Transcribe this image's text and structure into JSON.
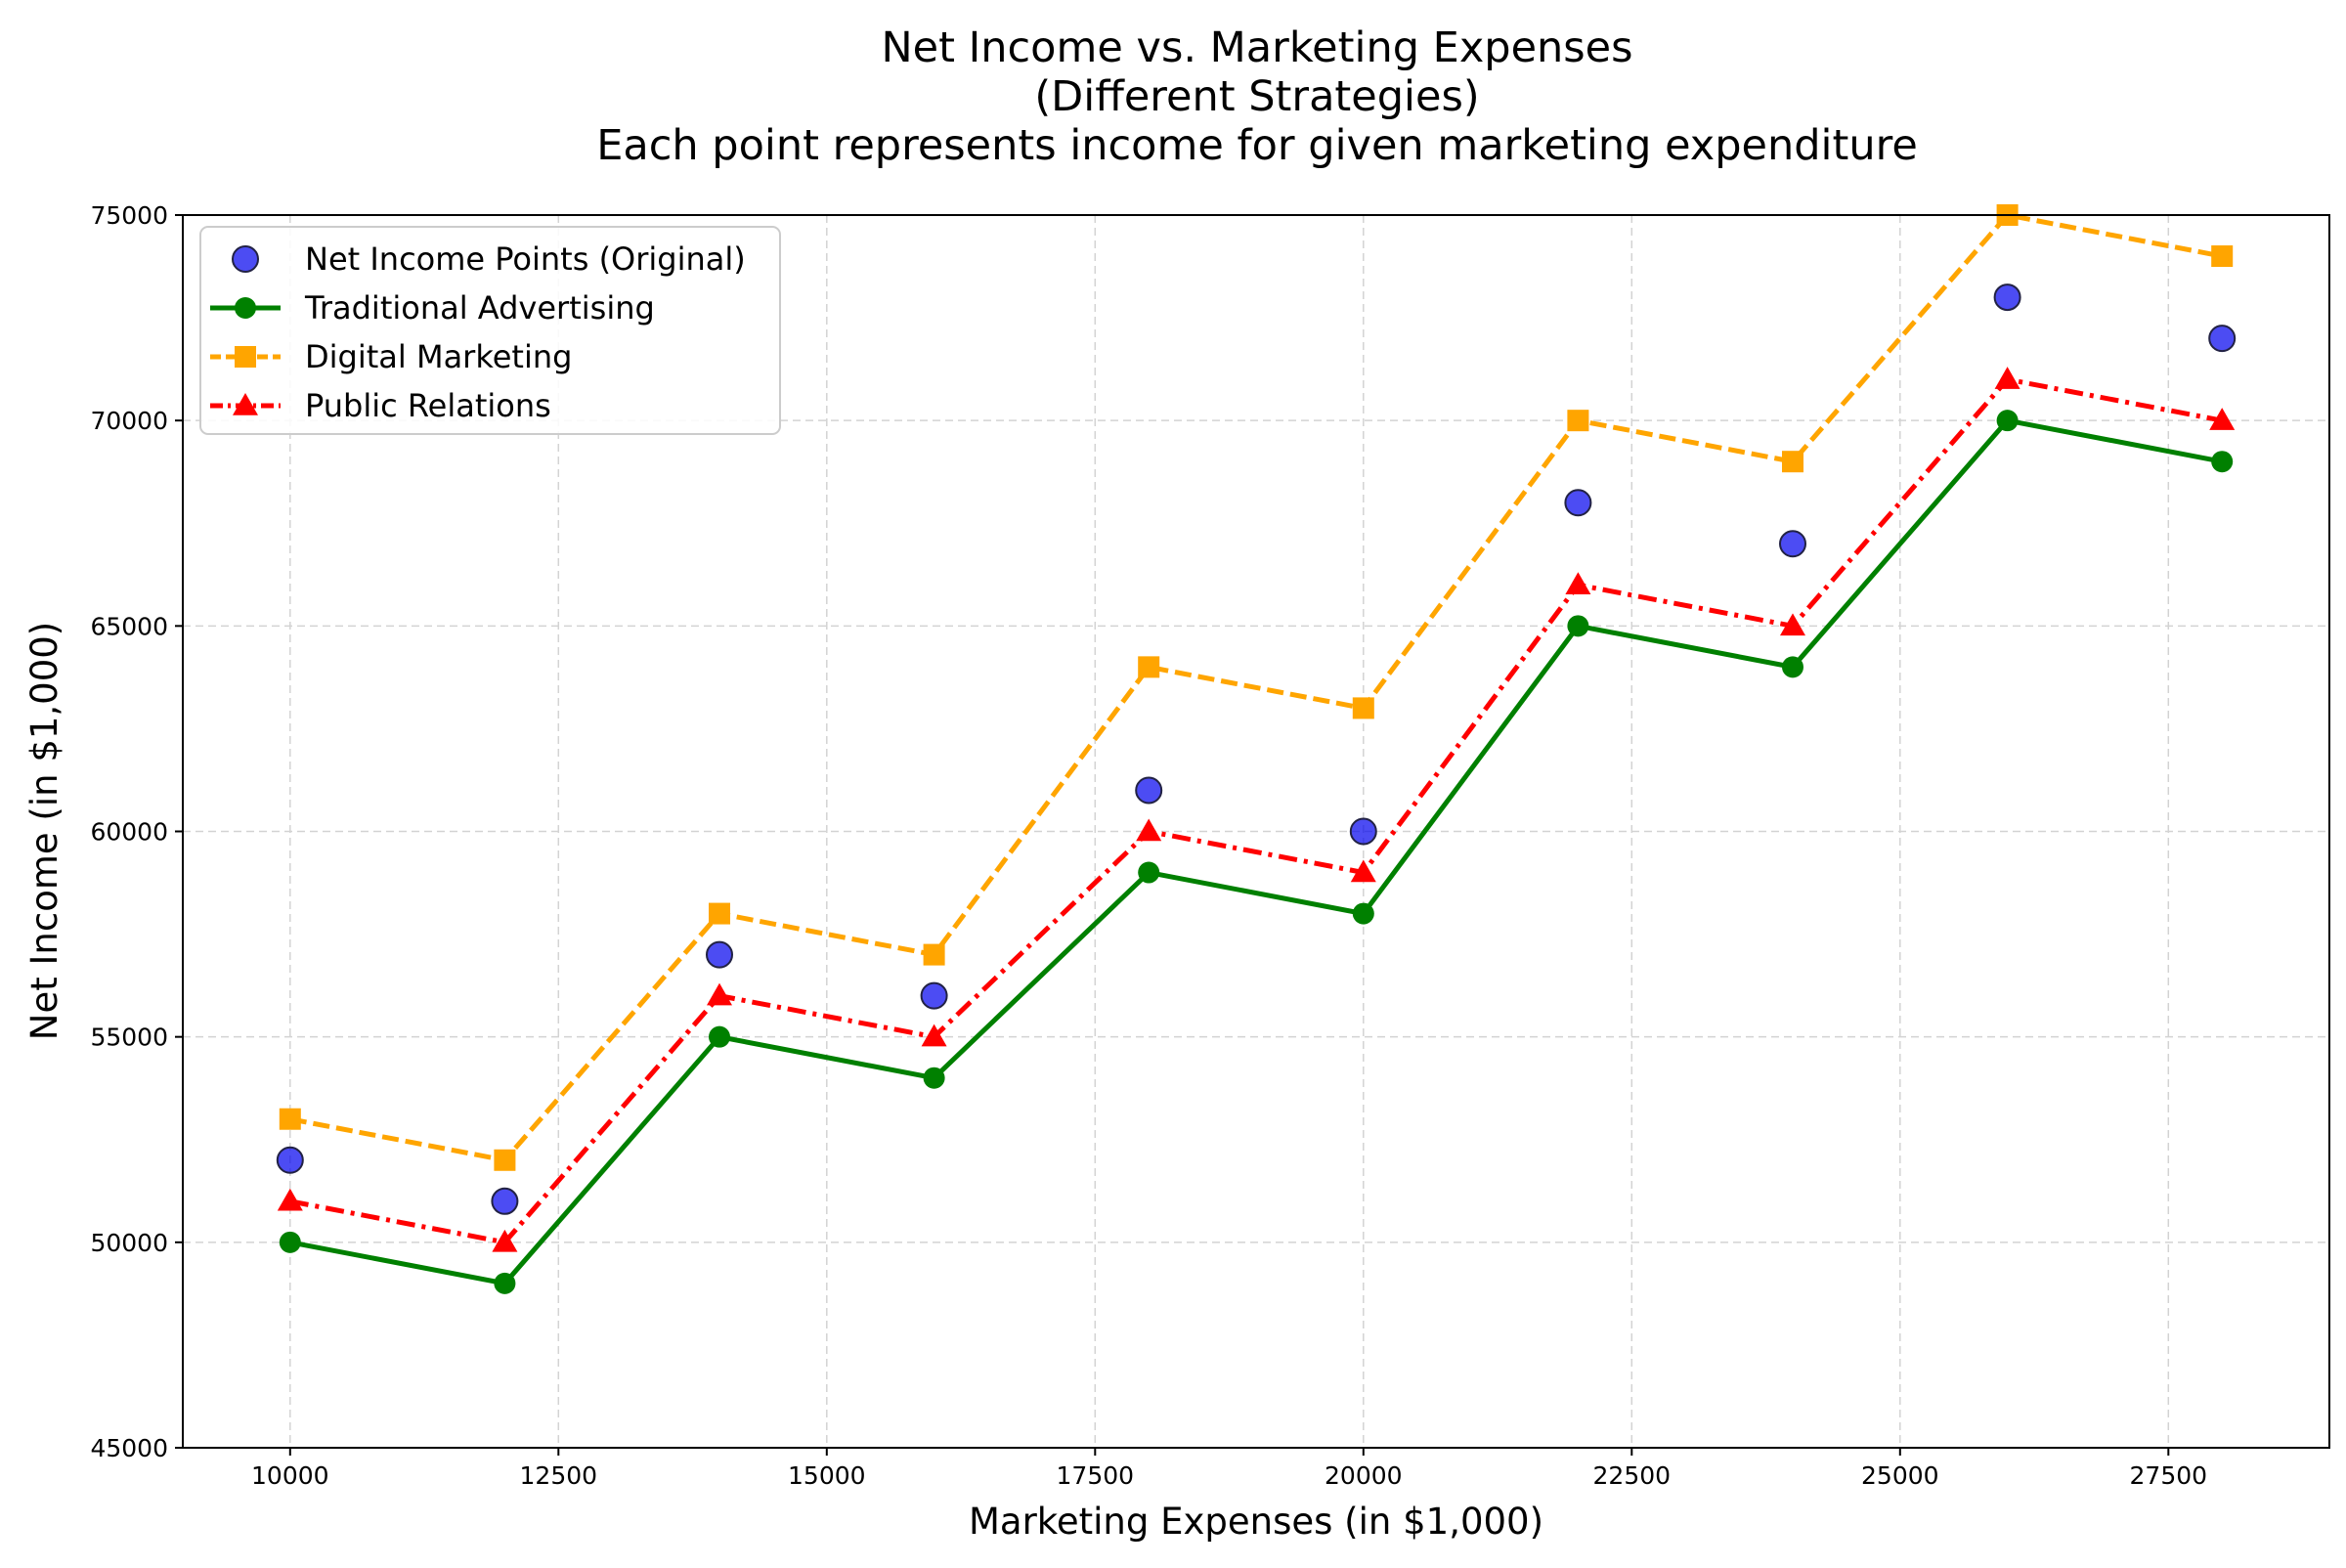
{
  "chart_data": {
    "type": "line",
    "title_lines": [
      "Net Income vs. Marketing Expenses",
      "(Different Strategies)",
      "Each point represents income for given marketing expenditure"
    ],
    "xlabel": "Marketing Expenses (in $1,000)",
    "ylabel": "Net Income (in $1,000)",
    "xlim": [
      9000,
      29000
    ],
    "ylim": [
      45000,
      75000
    ],
    "xticks": [
      10000,
      12500,
      15000,
      17500,
      20000,
      22500,
      25000,
      27500
    ],
    "yticks": [
      45000,
      50000,
      55000,
      60000,
      65000,
      70000,
      75000
    ],
    "xtick_labels": [
      "10000",
      "12500",
      "15000",
      "17500",
      "20000",
      "22500",
      "25000",
      "27500"
    ],
    "ytick_labels": [
      "45000",
      "50000",
      "55000",
      "60000",
      "65000",
      "70000",
      "75000"
    ],
    "grid": true,
    "legend_position": "top-left",
    "x": [
      10000,
      12000,
      14000,
      16000,
      18000,
      20000,
      22000,
      24000,
      26000,
      28000
    ],
    "series": [
      {
        "name": "Net Income Points (Original)",
        "kind": "scatter",
        "marker": "circle",
        "color": "#0000ee",
        "values": [
          52000,
          51000,
          57000,
          56000,
          61000,
          60000,
          68000,
          67000,
          73000,
          72000
        ]
      },
      {
        "name": "Traditional Advertising",
        "kind": "line",
        "marker": "circle",
        "line_style": "solid",
        "color": "#008000",
        "values": [
          50000,
          49000,
          55000,
          54000,
          59000,
          58000,
          65000,
          64000,
          70000,
          69000
        ]
      },
      {
        "name": "Digital Marketing",
        "kind": "line",
        "marker": "square",
        "line_style": "dashed",
        "color": "#ffa500",
        "values": [
          53000,
          52000,
          58000,
          57000,
          64000,
          63000,
          70000,
          69000,
          75000,
          74000
        ]
      },
      {
        "name": "Public Relations",
        "kind": "line",
        "marker": "triangle",
        "line_style": "dashdot",
        "color": "#ff0000",
        "values": [
          51000,
          50000,
          56000,
          55000,
          60000,
          59000,
          66000,
          65000,
          71000,
          70000
        ]
      }
    ]
  }
}
